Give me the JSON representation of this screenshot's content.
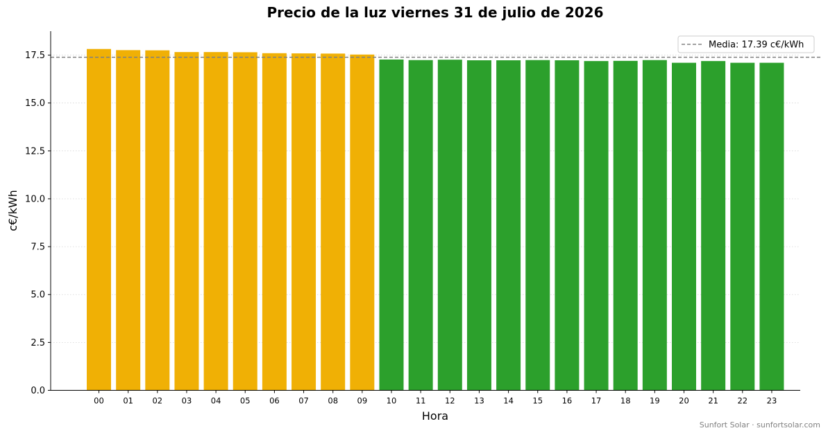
{
  "chart_data": {
    "type": "bar",
    "title": "Precio de la luz viernes 31 de julio de 2026",
    "xlabel": "Hora",
    "ylabel": "c€/kWh",
    "ylim": [
      0,
      18.75
    ],
    "yticks": [
      0.0,
      2.5,
      5.0,
      7.5,
      10.0,
      12.5,
      15.0,
      17.5
    ],
    "grid": "horizontal-dotted",
    "legend_position": "top-right",
    "categories": [
      "00",
      "01",
      "02",
      "03",
      "04",
      "05",
      "06",
      "07",
      "08",
      "09",
      "10",
      "11",
      "12",
      "13",
      "14",
      "15",
      "16",
      "17",
      "18",
      "19",
      "20",
      "21",
      "22",
      "23"
    ],
    "values": [
      17.82,
      17.76,
      17.75,
      17.66,
      17.66,
      17.65,
      17.6,
      17.59,
      17.58,
      17.53,
      17.27,
      17.24,
      17.26,
      17.23,
      17.23,
      17.24,
      17.23,
      17.19,
      17.2,
      17.24,
      17.1,
      17.19,
      17.1,
      17.1
    ],
    "bar_colors": [
      "#f0b005",
      "#f0b005",
      "#f0b005",
      "#f0b005",
      "#f0b005",
      "#f0b005",
      "#f0b005",
      "#f0b005",
      "#f0b005",
      "#f0b005",
      "#2ca02c",
      "#2ca02c",
      "#2ca02c",
      "#2ca02c",
      "#2ca02c",
      "#2ca02c",
      "#2ca02c",
      "#2ca02c",
      "#2ca02c",
      "#2ca02c",
      "#2ca02c",
      "#2ca02c",
      "#2ca02c",
      "#2ca02c"
    ],
    "mean": {
      "value": 17.39,
      "label": "Media: 17.39 c€/kWh",
      "color": "#808080",
      "style": "dashed"
    }
  },
  "footer": {
    "text": "Sunfort Solar · sunfortsolar.com"
  }
}
